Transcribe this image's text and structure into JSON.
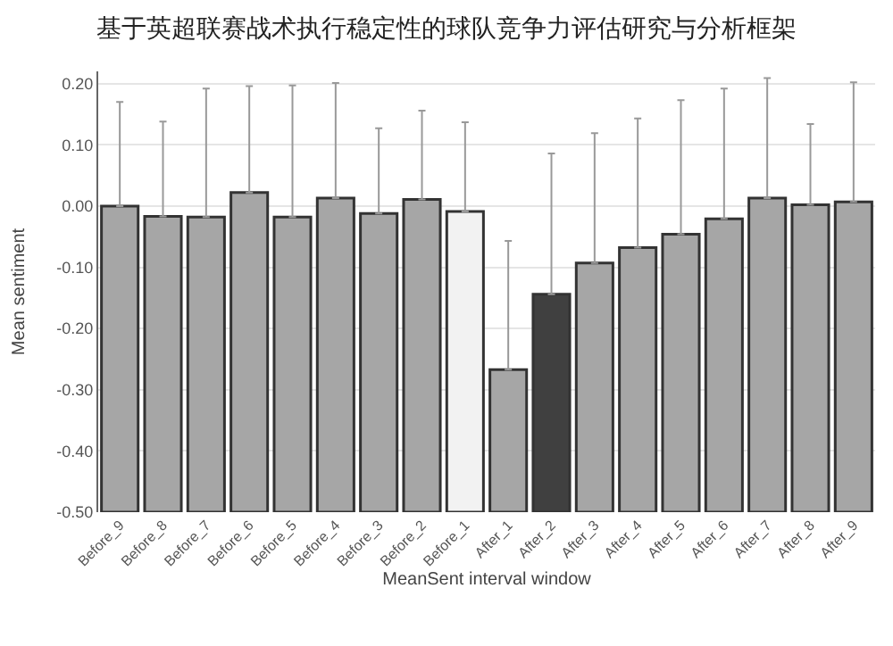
{
  "chart_data": {
    "type": "bar",
    "title": "基于英超联赛战术执行稳定性的球队竞争力评估研究与分析框架",
    "xlabel": "MeanSent interval window",
    "ylabel": "Mean sentiment",
    "categories": [
      "Before_9",
      "Before_8",
      "Before_7",
      "Before_6",
      "Before_5",
      "Before_4",
      "Before_3",
      "Before_2",
      "Before_1",
      "After_1",
      "After_2",
      "After_3",
      "After_4",
      "After_5",
      "After_6",
      "After_7",
      "After_8",
      "After_9"
    ],
    "base": [
      -0.5,
      -0.5,
      -0.5,
      -0.5,
      -0.5,
      -0.5,
      -0.5,
      -0.5,
      -0.5,
      -0.5,
      -0.5,
      -0.5,
      -0.5,
      -0.5,
      -0.5,
      -0.5,
      -0.5,
      -0.5
    ],
    "values": [
      0.5,
      0.483,
      0.482,
      0.522,
      0.482,
      0.513,
      0.488,
      0.511,
      0.491,
      0.233,
      0.356,
      0.407,
      0.432,
      0.454,
      0.479,
      0.513,
      0.502,
      0.507
    ],
    "errors": [
      [
        0.0,
        0.17
      ],
      [
        -0.017,
        0.138
      ],
      [
        -0.018,
        0.192
      ],
      [
        0.022,
        0.196
      ],
      [
        -0.018,
        0.197
      ],
      [
        0.013,
        0.201
      ],
      [
        -0.012,
        0.127
      ],
      [
        0.011,
        0.156
      ],
      [
        -0.009,
        0.137
      ],
      [
        -0.267,
        -0.057
      ],
      [
        -0.144,
        0.086
      ],
      [
        -0.093,
        0.119
      ],
      [
        -0.068,
        0.143
      ],
      [
        -0.046,
        0.173
      ],
      [
        -0.021,
        0.192
      ],
      [
        0.013,
        0.209
      ],
      [
        0.002,
        0.134
      ],
      [
        0.007,
        0.202
      ]
    ],
    "colors": [
      "#a6a6a6",
      "#a6a6a6",
      "#a6a6a6",
      "#a6a6a6",
      "#a6a6a6",
      "#a6a6a6",
      "#a6a6a6",
      "#a6a6a6",
      "#f2f2f2",
      "#a6a6a6",
      "#404040",
      "#a6a6a6",
      "#a6a6a6",
      "#a6a6a6",
      "#a6a6a6",
      "#a6a6a6",
      "#a6a6a6",
      "#a6a6a6"
    ],
    "ylim": [
      -0.5,
      0.22
    ],
    "yticks": [
      {
        "value": -0.5,
        "label": "-0.50"
      },
      {
        "value": -0.4,
        "label": "-0.40"
      },
      {
        "value": -0.3,
        "label": "-0.30"
      },
      {
        "value": -0.2,
        "label": "-0.20"
      },
      {
        "value": -0.1,
        "label": "-0.10"
      },
      {
        "value": 0,
        "label": "0.00"
      },
      {
        "value": 0.1,
        "label": "0.10"
      },
      {
        "value": 0.2,
        "label": "0.20"
      }
    ],
    "grid": "y",
    "legend": false
  }
}
